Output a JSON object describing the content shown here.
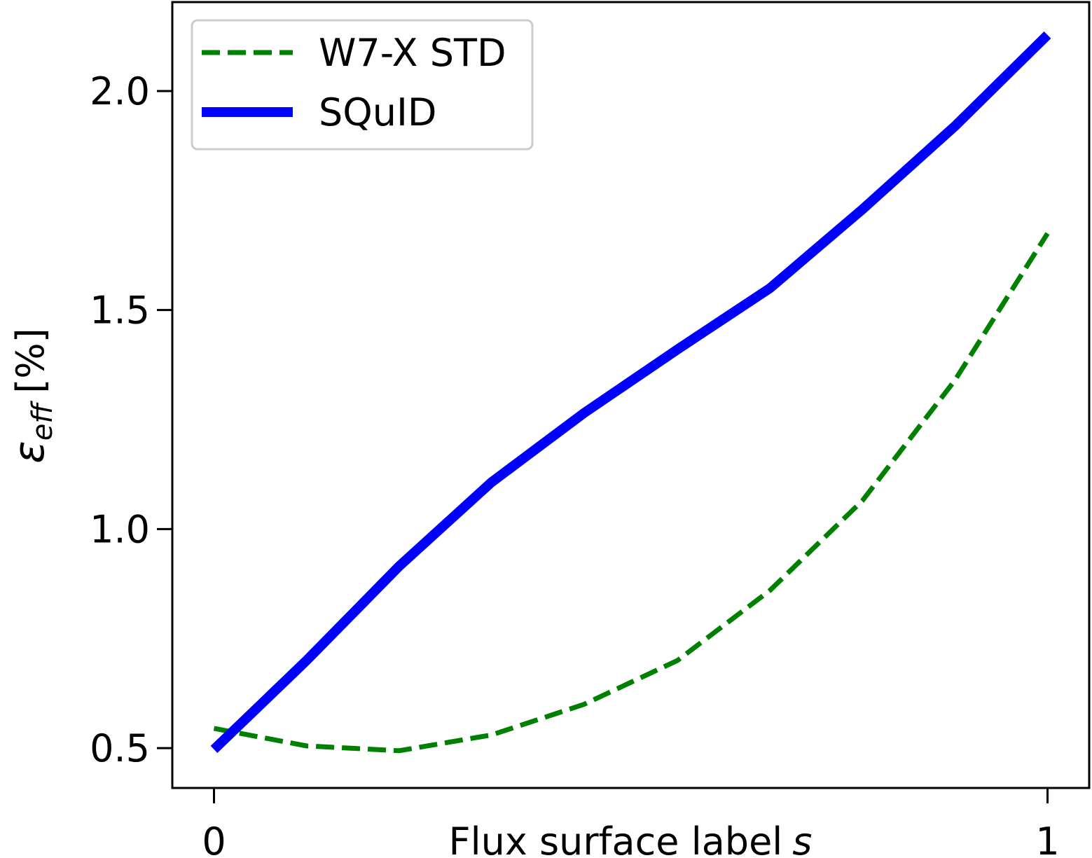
{
  "chart_data": {
    "type": "line",
    "xlabel": {
      "text": "Flux surface label",
      "symbol": "s"
    },
    "ylabel": {
      "symbol": "ε",
      "subscript": "eff",
      "unit": "[%]"
    },
    "x": [
      0,
      0.111,
      0.222,
      0.333,
      0.444,
      0.556,
      0.667,
      0.778,
      0.889,
      1
    ],
    "series": [
      {
        "name": "W7-X STD",
        "color": "#008000",
        "dashed": true,
        "values": [
          0.545,
          0.505,
          0.494,
          0.53,
          0.6,
          0.7,
          0.86,
          1.065,
          1.34,
          1.675
        ]
      },
      {
        "name": "SQuID",
        "color": "#0000ff",
        "dashed": false,
        "values": [
          0.497,
          0.7,
          0.915,
          1.107,
          1.265,
          1.41,
          1.55,
          1.73,
          1.92,
          2.128
        ]
      }
    ],
    "xlim": [
      -0.05,
      1.05
    ],
    "ylim": [
      0.409,
      2.203
    ],
    "xticks": [
      0,
      1
    ],
    "yticks": [
      {
        "value": 0.5,
        "label": "0.5"
      },
      {
        "value": 1.0,
        "label": "1.0"
      },
      {
        "value": 1.5,
        "label": "1.5"
      },
      {
        "value": 2.0,
        "label": "2.0"
      }
    ],
    "legend": "upper left",
    "grid": false
  }
}
